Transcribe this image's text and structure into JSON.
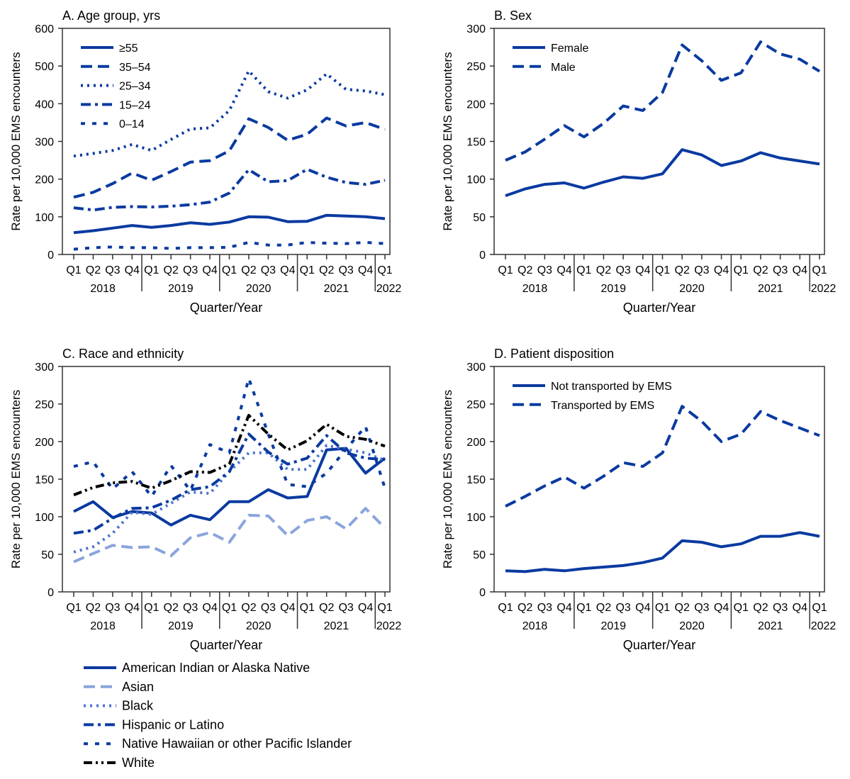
{
  "colors": {
    "blue": "#0a3aa0",
    "light_blue": "#8aa5dc",
    "mid_blue": "#4f74cc",
    "black": "#000000"
  },
  "quarters": [
    "Q1",
    "Q2",
    "Q3",
    "Q4",
    "Q1",
    "Q2",
    "Q3",
    "Q4",
    "Q1",
    "Q2",
    "Q3",
    "Q4",
    "Q1",
    "Q2",
    "Q3",
    "Q4",
    "Q1"
  ],
  "years": [
    "2018",
    "2019",
    "2020",
    "2021",
    "2022"
  ],
  "chart_data": [
    {
      "type": "line",
      "title": "A. Age group, yrs",
      "xlabel": "Quarter/Year",
      "ylabel": "Rate per 10,000 EMS encounters",
      "ylim": [
        0,
        600
      ],
      "yticks": [
        0,
        100,
        200,
        300,
        400,
        500,
        600
      ],
      "legend": "top-left",
      "series": [
        {
          "name": "≥55",
          "style": "solid",
          "color": "blue",
          "values": [
            58,
            63,
            70,
            77,
            72,
            77,
            84,
            80,
            86,
            100,
            99,
            87,
            88,
            104,
            102,
            100,
            95
          ]
        },
        {
          "name": "35–54",
          "style": "dash",
          "color": "blue",
          "values": [
            152,
            165,
            188,
            216,
            197,
            220,
            245,
            249,
            275,
            360,
            337,
            303,
            319,
            362,
            341,
            350,
            332
          ]
        },
        {
          "name": "25–34",
          "style": "dot",
          "color": "blue",
          "values": [
            261,
            268,
            276,
            292,
            276,
            305,
            333,
            336,
            382,
            487,
            432,
            415,
            437,
            479,
            438,
            434,
            424
          ]
        },
        {
          "name": "15–24",
          "style": "dashdot",
          "color": "blue",
          "values": [
            124,
            118,
            125,
            127,
            126,
            128,
            132,
            139,
            163,
            225,
            193,
            196,
            226,
            205,
            191,
            186,
            197
          ]
        },
        {
          "name": "0–14",
          "style": "sparse",
          "color": "blue",
          "values": [
            14,
            18,
            20,
            18,
            18,
            16,
            18,
            18,
            19,
            32,
            25,
            25,
            32,
            30,
            29,
            32,
            29
          ]
        }
      ]
    },
    {
      "type": "line",
      "title": "B. Sex",
      "xlabel": "Quarter/Year",
      "ylabel": "Rate per 10,000 EMS encounters",
      "ylim": [
        0,
        300
      ],
      "yticks": [
        0,
        50,
        100,
        150,
        200,
        250,
        300
      ],
      "legend": "top-left",
      "series": [
        {
          "name": "Female",
          "style": "solid",
          "color": "blue",
          "values": [
            78,
            87,
            93,
            95,
            88,
            96,
            103,
            101,
            107,
            139,
            132,
            118,
            124,
            135,
            128,
            124,
            120
          ]
        },
        {
          "name": "Male",
          "style": "dash",
          "color": "blue",
          "values": [
            125,
            136,
            153,
            171,
            156,
            174,
            197,
            191,
            215,
            278,
            257,
            231,
            241,
            282,
            266,
            259,
            243
          ]
        }
      ]
    },
    {
      "type": "line",
      "title": "C. Race and ethnicity",
      "xlabel": "Quarter/Year",
      "ylabel": "Rate per 10,000 EMS encounters",
      "ylim": [
        0,
        300
      ],
      "yticks": [
        0,
        50,
        100,
        150,
        200,
        250,
        300
      ],
      "legend": "bottom",
      "series": [
        {
          "name": "American Indian or Alaska Native",
          "style": "solid",
          "color": "blue",
          "values": [
            107,
            120,
            99,
            107,
            105,
            89,
            102,
            96,
            120,
            120,
            136,
            125,
            127,
            189,
            191,
            158,
            178
          ]
        },
        {
          "name": "Asian",
          "style": "dash",
          "color": "light_blue",
          "values": [
            40,
            51,
            62,
            59,
            60,
            48,
            72,
            79,
            66,
            102,
            101,
            75,
            95,
            100,
            84,
            111,
            85
          ]
        },
        {
          "name": "Black",
          "style": "dot",
          "color": "mid_blue",
          "values": [
            53,
            60,
            78,
            106,
            103,
            118,
            133,
            131,
            160,
            185,
            185,
            163,
            163,
            195,
            190,
            185,
            175
          ]
        },
        {
          "name": "Hispanic or Latino",
          "style": "dashdot",
          "color": "blue",
          "values": [
            78,
            82,
            98,
            111,
            112,
            122,
            136,
            140,
            160,
            210,
            186,
            170,
            178,
            208,
            185,
            178,
            176
          ]
        },
        {
          "name": "Native Hawaiian or other Pacific Islander",
          "style": "sparse",
          "color": "blue",
          "values": [
            167,
            173,
            137,
            160,
            127,
            168,
            135,
            196,
            185,
            284,
            210,
            143,
            140,
            158,
            190,
            220,
            138
          ]
        },
        {
          "name": "White",
          "style": "dashdotdot",
          "color": "black",
          "values": [
            129,
            139,
            145,
            147,
            138,
            148,
            160,
            159,
            170,
            235,
            210,
            189,
            201,
            223,
            207,
            203,
            194
          ]
        }
      ]
    },
    {
      "type": "line",
      "title": "D. Patient disposition",
      "xlabel": "Quarter/Year",
      "ylabel": "Rate per 10,000 EMS encounters",
      "ylim": [
        0,
        300
      ],
      "yticks": [
        0,
        50,
        100,
        150,
        200,
        250,
        300
      ],
      "legend": "top-left",
      "series": [
        {
          "name": "Not transported by EMS",
          "style": "solid",
          "color": "blue",
          "values": [
            28,
            27,
            30,
            28,
            31,
            33,
            35,
            39,
            45,
            68,
            66,
            60,
            64,
            74,
            74,
            79,
            74
          ]
        },
        {
          "name": "Transported by EMS",
          "style": "dash",
          "color": "blue",
          "values": [
            114,
            127,
            141,
            153,
            138,
            154,
            172,
            167,
            185,
            247,
            227,
            200,
            210,
            240,
            228,
            218,
            208
          ]
        }
      ]
    }
  ]
}
